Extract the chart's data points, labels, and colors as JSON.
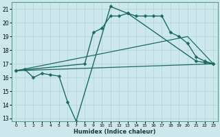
{
  "title": "",
  "xlabel": "Humidex (Indice chaleur)",
  "bg_color": "#cce8ec",
  "grid_color": "#b8d8dc",
  "line_color": "#1a6b5e",
  "xlim": [
    -0.5,
    23.5
  ],
  "ylim": [
    12.8,
    21.5
  ],
  "yticks": [
    13,
    14,
    15,
    16,
    17,
    18,
    19,
    20,
    21
  ],
  "xticks": [
    0,
    1,
    2,
    3,
    4,
    5,
    6,
    7,
    8,
    9,
    10,
    11,
    12,
    13,
    14,
    15,
    16,
    17,
    18,
    19,
    20,
    21,
    22,
    23
  ],
  "line1_x": [
    0,
    1,
    2,
    3,
    4,
    5,
    6,
    7,
    11,
    13,
    21,
    22,
    23
  ],
  "line1_y": [
    16.5,
    16.6,
    16.0,
    16.3,
    16.2,
    16.1,
    14.2,
    12.8,
    21.2,
    20.7,
    17.2,
    17.1,
    17.0
  ],
  "line2_x": [
    0,
    8,
    9,
    10,
    11,
    12,
    13,
    14,
    15,
    16,
    17,
    18,
    19,
    20,
    21,
    22,
    23
  ],
  "line2_y": [
    16.5,
    17.0,
    19.3,
    19.6,
    20.5,
    20.5,
    20.7,
    20.5,
    20.5,
    20.5,
    20.5,
    19.3,
    19.0,
    18.5,
    17.5,
    17.2,
    17.0
  ],
  "line3_x": [
    0,
    23
  ],
  "line3_y": [
    16.5,
    17.0
  ],
  "line4_x": [
    0,
    20,
    23
  ],
  "line4_y": [
    16.5,
    19.0,
    17.0
  ]
}
